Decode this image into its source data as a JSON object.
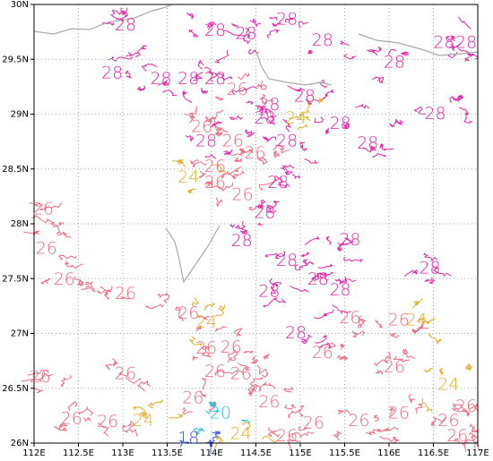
{
  "chart_data": {
    "type": "contour",
    "xlim": [
      112,
      117
    ],
    "ylim": [
      26,
      30
    ],
    "grid": true,
    "xticks": [
      {
        "value": 112,
        "label": "112E"
      },
      {
        "value": 112.5,
        "label": "112.5E"
      },
      {
        "value": 113,
        "label": "113E"
      },
      {
        "value": 113.5,
        "label": "113.5E"
      },
      {
        "value": 114,
        "label": "114E"
      },
      {
        "value": 114.5,
        "label": "114.5E"
      },
      {
        "value": 115,
        "label": "115E"
      },
      {
        "value": 115.5,
        "label": "115.5E"
      },
      {
        "value": 116,
        "label": "116E"
      },
      {
        "value": 116.5,
        "label": "116.5E"
      },
      {
        "value": 117,
        "label": "117E"
      }
    ],
    "yticks": [
      {
        "value": 26,
        "label": "26N"
      },
      {
        "value": 26.5,
        "label": "26.5N"
      },
      {
        "value": 27,
        "label": "27N"
      },
      {
        "value": 27.5,
        "label": "27.5N"
      },
      {
        "value": 28,
        "label": "28N"
      },
      {
        "value": 28.5,
        "label": "28.5N"
      },
      {
        "value": 29,
        "label": "29N"
      },
      {
        "value": 29.5,
        "label": "29.5N"
      },
      {
        "value": 30,
        "label": "30N"
      }
    ],
    "levels": [
      {
        "value": 18,
        "color": "#3a5cf0"
      },
      {
        "value": 20,
        "color": "#2cc4d4"
      },
      {
        "value": 24,
        "color": "#e0b030"
      },
      {
        "value": 26,
        "color": "#f06a80"
      },
      {
        "value": 28,
        "color": "#e028a8"
      }
    ],
    "contour_labels": [
      {
        "lon": 114.85,
        "lat": 29.86,
        "value": 28
      },
      {
        "lon": 113.03,
        "lat": 29.81,
        "value": 28
      },
      {
        "lon": 114.04,
        "lat": 29.76,
        "value": 28
      },
      {
        "lon": 114.39,
        "lat": 29.73,
        "value": 28
      },
      {
        "lon": 115.25,
        "lat": 29.67,
        "value": 28
      },
      {
        "lon": 116.06,
        "lat": 29.47,
        "value": 28
      },
      {
        "lon": 116.62,
        "lat": 29.65,
        "value": 28
      },
      {
        "lon": 116.87,
        "lat": 29.65,
        "value": 28
      },
      {
        "lon": 112.88,
        "lat": 29.37,
        "value": 28
      },
      {
        "lon": 113.43,
        "lat": 29.32,
        "value": 28
      },
      {
        "lon": 113.74,
        "lat": 29.32,
        "value": 28
      },
      {
        "lon": 114.04,
        "lat": 29.32,
        "value": 28
      },
      {
        "lon": 114.29,
        "lat": 29.22,
        "value": 26
      },
      {
        "lon": 115.05,
        "lat": 29.16,
        "value": 28
      },
      {
        "lon": 114.65,
        "lat": 29.08,
        "value": 28
      },
      {
        "lon": 113.89,
        "lat": 28.88,
        "value": 26
      },
      {
        "lon": 114.95,
        "lat": 28.96,
        "value": 24
      },
      {
        "lon": 115.45,
        "lat": 28.91,
        "value": 28
      },
      {
        "lon": 116.52,
        "lat": 29.0,
        "value": 28
      },
      {
        "lon": 114.6,
        "lat": 28.96,
        "value": 28
      },
      {
        "lon": 113.94,
        "lat": 28.75,
        "value": 28
      },
      {
        "lon": 114.24,
        "lat": 28.75,
        "value": 26
      },
      {
        "lon": 114.85,
        "lat": 28.75,
        "value": 28
      },
      {
        "lon": 115.76,
        "lat": 28.73,
        "value": 28
      },
      {
        "lon": 114.04,
        "lat": 28.52,
        "value": 26
      },
      {
        "lon": 114.49,
        "lat": 28.64,
        "value": 26
      },
      {
        "lon": 113.74,
        "lat": 28.42,
        "value": 24
      },
      {
        "lon": 114.04,
        "lat": 28.37,
        "value": 26
      },
      {
        "lon": 114.75,
        "lat": 28.37,
        "value": 28
      },
      {
        "lon": 114.35,
        "lat": 28.26,
        "value": 26
      },
      {
        "lon": 112.1,
        "lat": 28.13,
        "value": 26
      },
      {
        "lon": 114.6,
        "lat": 28.1,
        "value": 28
      },
      {
        "lon": 114.34,
        "lat": 27.84,
        "value": 28
      },
      {
        "lon": 115.56,
        "lat": 27.85,
        "value": 28
      },
      {
        "lon": 112.14,
        "lat": 27.77,
        "value": 26
      },
      {
        "lon": 114.85,
        "lat": 27.66,
        "value": 28
      },
      {
        "lon": 116.46,
        "lat": 27.59,
        "value": 28
      },
      {
        "lon": 112.34,
        "lat": 27.49,
        "value": 26
      },
      {
        "lon": 113.03,
        "lat": 27.36,
        "value": 26
      },
      {
        "lon": 114.65,
        "lat": 27.38,
        "value": 28
      },
      {
        "lon": 115.2,
        "lat": 27.49,
        "value": 28
      },
      {
        "lon": 115.45,
        "lat": 27.39,
        "value": 28
      },
      {
        "lon": 113.74,
        "lat": 27.18,
        "value": 26
      },
      {
        "lon": 113.94,
        "lat": 27.1,
        "value": 24
      },
      {
        "lon": 114.95,
        "lat": 27.0,
        "value": 28
      },
      {
        "lon": 115.56,
        "lat": 27.14,
        "value": 26
      },
      {
        "lon": 116.11,
        "lat": 27.12,
        "value": 26
      },
      {
        "lon": 116.31,
        "lat": 27.12,
        "value": 24
      },
      {
        "lon": 113.94,
        "lat": 26.86,
        "value": 26
      },
      {
        "lon": 114.22,
        "lat": 26.87,
        "value": 26
      },
      {
        "lon": 112.07,
        "lat": 26.6,
        "value": 26
      },
      {
        "lon": 113.03,
        "lat": 26.63,
        "value": 26
      },
      {
        "lon": 114.04,
        "lat": 26.65,
        "value": 26
      },
      {
        "lon": 114.33,
        "lat": 26.63,
        "value": 26
      },
      {
        "lon": 115.25,
        "lat": 26.82,
        "value": 26
      },
      {
        "lon": 116.06,
        "lat": 26.69,
        "value": 26
      },
      {
        "lon": 116.67,
        "lat": 26.53,
        "value": 24
      },
      {
        "lon": 113.79,
        "lat": 26.41,
        "value": 26
      },
      {
        "lon": 114.1,
        "lat": 26.27,
        "value": 20
      },
      {
        "lon": 114.65,
        "lat": 26.37,
        "value": 26
      },
      {
        "lon": 116.87,
        "lat": 26.33,
        "value": 26
      },
      {
        "lon": 112.42,
        "lat": 26.22,
        "value": 26
      },
      {
        "lon": 112.83,
        "lat": 26.19,
        "value": 26
      },
      {
        "lon": 113.23,
        "lat": 26.2,
        "value": 24
      },
      {
        "lon": 115.15,
        "lat": 26.18,
        "value": 26
      },
      {
        "lon": 115.66,
        "lat": 26.2,
        "value": 26
      },
      {
        "lon": 116.11,
        "lat": 26.27,
        "value": 26
      },
      {
        "lon": 116.67,
        "lat": 26.2,
        "value": 26
      },
      {
        "lon": 114.33,
        "lat": 26.08,
        "value": 24
      },
      {
        "lon": 113.74,
        "lat": 26.04,
        "value": 18
      },
      {
        "lon": 114.85,
        "lat": 26.06,
        "value": 26
      },
      {
        "lon": 116.77,
        "lat": 26.06,
        "value": 26
      }
    ]
  }
}
